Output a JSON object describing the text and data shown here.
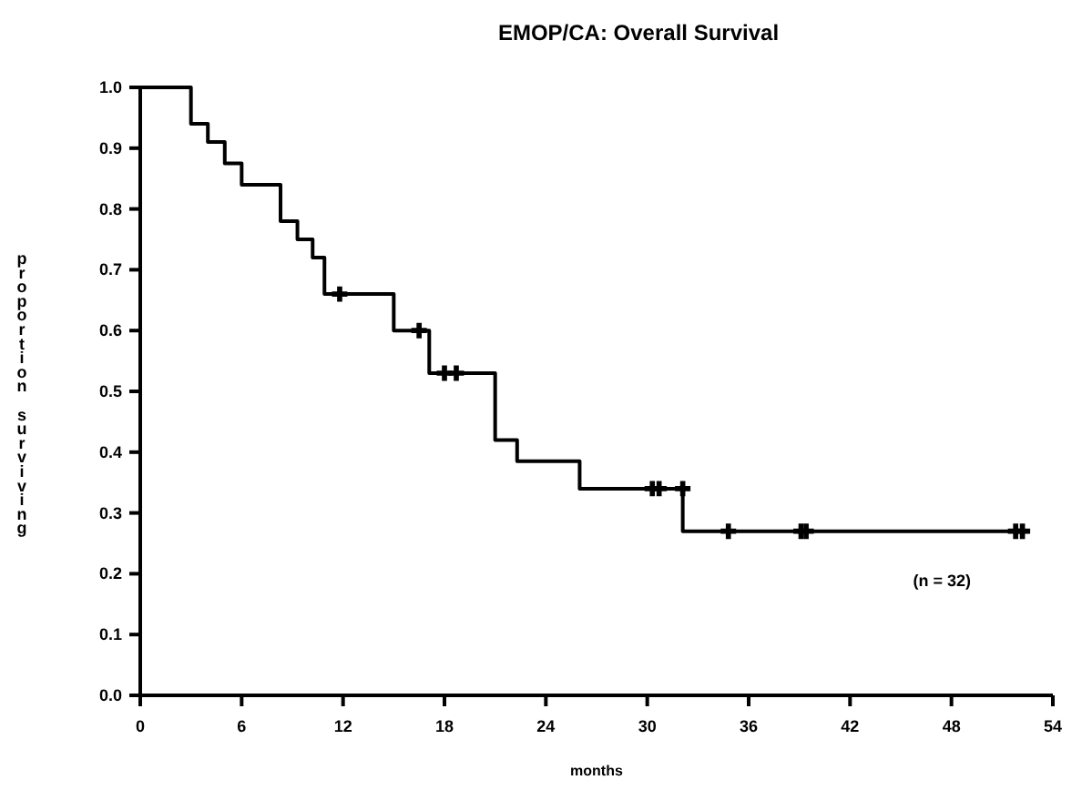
{
  "chart_data": {
    "type": "step",
    "title": "EMOP/CA: Overall Survival",
    "xlabel": "months",
    "ylabel": "proportion surviving",
    "annotations": [
      "(n = 32)"
    ],
    "xlim": [
      0,
      54
    ],
    "ylim": [
      0,
      1
    ],
    "xticks": [
      0,
      6,
      12,
      18,
      24,
      30,
      36,
      42,
      48,
      54
    ],
    "yticks": [
      {
        "value": 0,
        "label": "0.0"
      },
      0.1,
      0.2,
      0.3,
      0.4,
      0.5,
      0.6,
      0.7,
      0.8,
      0.9,
      {
        "value": 1,
        "label": "1.0"
      }
    ],
    "grid": false,
    "series": [
      {
        "color": "#000000",
        "marker": "none",
        "line_style": "solid",
        "x": [
          0,
          3,
          4,
          5,
          6,
          8.3,
          9.3,
          10.2,
          10.9,
          15,
          17.1,
          21,
          22.3,
          26,
          32.1,
          52.5
        ],
        "values": [
          1,
          0.94,
          0.91,
          0.875,
          0.84,
          0.78,
          0.75,
          0.72,
          0.66,
          0.6,
          0.53,
          0.42,
          0.385,
          0.34,
          0.27,
          0.27
        ]
      },
      {
        "type": "scatter",
        "color": "#000000",
        "marker": "cross",
        "x": [
          11.8,
          16.5,
          18,
          18.7,
          30.3,
          30.7,
          32.1,
          34.8,
          39.1,
          39.4,
          51.8,
          52.2
        ],
        "values": [
          0.66,
          0.6,
          0.53,
          0.53,
          0.34,
          0.34,
          0.34,
          0.27,
          0.27,
          0.27,
          0.27,
          0.27
        ]
      }
    ]
  }
}
